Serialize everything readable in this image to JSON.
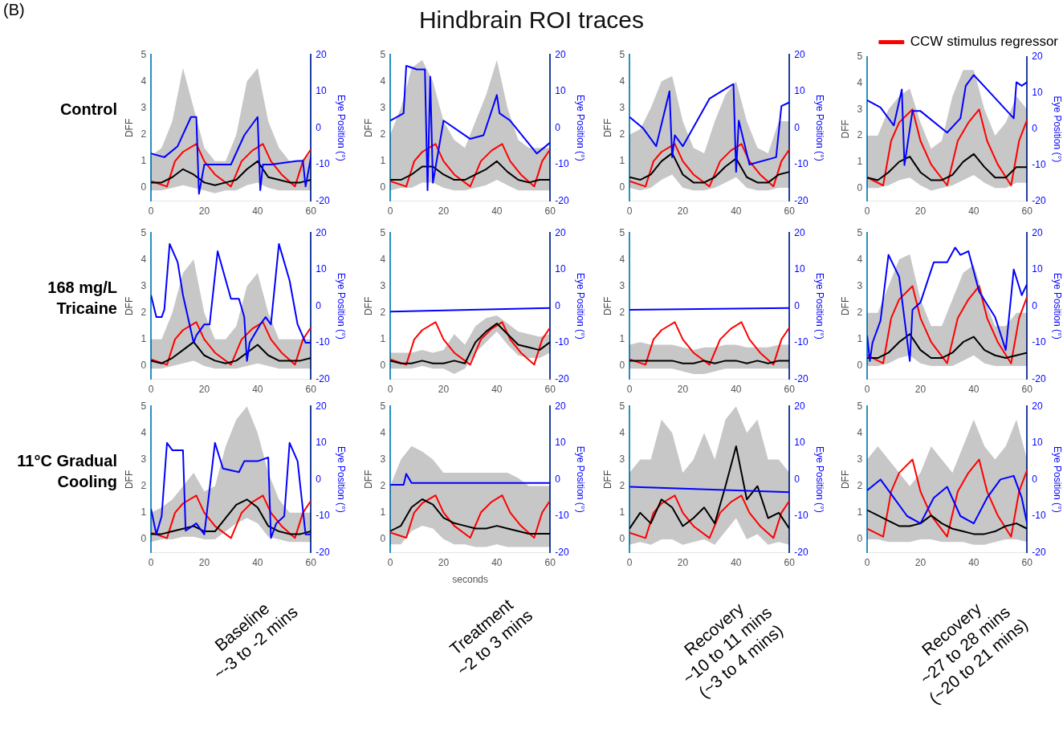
{
  "chart_data": [
    {
      "type": "other",
      "title": "Hindbrain ROI traces",
      "annotations": [
        "(B)",
        "Control",
        "168 mg/L Tricaine",
        "11°C Gradual Cooling",
        "Baseline\n~-3 to -2 mins",
        "Treatment\n~2 to 3 mins",
        "Recovery\n~10 to 11 mins\n(~3 to 4 mins)",
        "Recovery\n~27 to 28 mins\n(~20 to 21 mins)"
      ]
    },
    {
      "type": "line",
      "ylabel": "DFF",
      "y2label": "Eye Position (°)",
      "xlim": [
        0,
        60
      ],
      "xticks": [
        0,
        20,
        40,
        60
      ],
      "ylim": [
        -0.5,
        5
      ],
      "yticks": [
        0,
        1,
        2,
        3,
        4,
        5
      ],
      "y2lim": [
        -20,
        20
      ],
      "y2ticks": [
        -20,
        -10,
        0,
        10,
        20
      ],
      "x": [
        0,
        4,
        8,
        12,
        16,
        20,
        24,
        28,
        32,
        36,
        40,
        44,
        48,
        52,
        56,
        60
      ],
      "series": [
        {
          "color": "#000000",
          "values": [
            0.2,
            0.2,
            0.4,
            0.7,
            0.5,
            0.2,
            0.1,
            0.2,
            0.3,
            0.7,
            1.0,
            0.4,
            0.3,
            0.2,
            0.2,
            0.3
          ],
          "upper": [
            1.2,
            1.5,
            2.5,
            4.5,
            3.0,
            1.5,
            1.0,
            1.0,
            2.0,
            4.0,
            4.5,
            2.5,
            1.5,
            1.0,
            1.0,
            1.3
          ],
          "lower": [
            -0.1,
            -0.1,
            0,
            0.1,
            0,
            -0.1,
            -0.2,
            -0.1,
            -0.1,
            0.1,
            0.2,
            0,
            -0.1,
            -0.1,
            -0.1,
            -0.1
          ]
        },
        {
          "color": "#ff0000",
          "x": [
            0,
            6,
            9,
            12,
            17,
            20,
            24,
            30,
            34,
            38,
            42,
            45,
            49,
            54,
            57,
            60
          ],
          "values": [
            0.25,
            0.05,
            1.0,
            1.35,
            1.65,
            1.0,
            0.5,
            0.05,
            1.0,
            1.4,
            1.65,
            1.0,
            0.5,
            0.05,
            1.0,
            1.45
          ]
        },
        {
          "color": "#0000ff",
          "axis": "y2",
          "x": [
            0,
            5,
            10,
            15,
            17,
            18,
            20,
            30,
            35,
            40,
            41,
            42,
            45,
            55,
            57,
            58,
            60
          ],
          "values": [
            -7,
            -8,
            -5,
            3,
            3,
            -18,
            -10,
            -10,
            -2,
            3,
            -17,
            -10,
            -10,
            -9,
            -9,
            -16,
            -8
          ]
        }
      ]
    },
    {
      "type": "line",
      "ylabel": "DFF",
      "y2label": "Eye Position (°)",
      "xlim": [
        0,
        60
      ],
      "xticks": [
        0,
        20,
        40,
        60
      ],
      "ylim": [
        -0.5,
        5
      ],
      "yticks": [
        0,
        1,
        2,
        3,
        4,
        5
      ],
      "y2lim": [
        -20,
        20
      ],
      "y2ticks": [
        -20,
        -10,
        0,
        10,
        20
      ],
      "x": [
        0,
        4,
        8,
        12,
        16,
        20,
        24,
        28,
        32,
        36,
        40,
        44,
        48,
        52,
        56,
        60
      ],
      "series": [
        {
          "color": "#000000",
          "values": [
            0.3,
            0.3,
            0.5,
            0.8,
            0.8,
            0.5,
            0.3,
            0.3,
            0.5,
            0.7,
            1.0,
            0.6,
            0.3,
            0.2,
            0.3,
            0.3
          ],
          "upper": [
            2,
            3,
            4.5,
            4.8,
            4,
            2.5,
            1.8,
            1.5,
            2.5,
            3.5,
            4.8,
            3,
            1.8,
            1.5,
            1.5,
            1.5
          ],
          "lower": [
            -0.1,
            0,
            0,
            0.2,
            0.2,
            0,
            -0.1,
            -0.1,
            0,
            0.1,
            0.3,
            0.1,
            -0.1,
            -0.1,
            -0.1,
            -0.1
          ]
        },
        {
          "color": "#ff0000",
          "x": [
            0,
            6,
            9,
            12,
            17,
            20,
            24,
            30,
            34,
            38,
            42,
            45,
            49,
            54,
            57,
            60
          ],
          "values": [
            0.25,
            0.05,
            1.0,
            1.35,
            1.65,
            1.0,
            0.5,
            0.05,
            1.0,
            1.4,
            1.65,
            1.0,
            0.5,
            0.05,
            1.0,
            1.45
          ]
        },
        {
          "color": "#0000ff",
          "axis": "y2",
          "x": [
            0,
            5,
            6,
            10,
            13,
            14,
            15,
            16,
            20,
            30,
            35,
            40,
            41,
            45,
            55,
            60
          ],
          "values": [
            2,
            4,
            17,
            16,
            16,
            -17,
            14,
            -15,
            2,
            -3,
            -2,
            9,
            4,
            2,
            -7,
            -4
          ]
        }
      ]
    },
    {
      "type": "line",
      "ylabel": "DFF",
      "y2label": "Eye Position (°)",
      "xlim": [
        0,
        60
      ],
      "xticks": [
        0,
        20,
        40,
        60
      ],
      "ylim": [
        -0.5,
        5
      ],
      "yticks": [
        0,
        1,
        2,
        3,
        4,
        5
      ],
      "y2lim": [
        -20,
        20
      ],
      "y2ticks": [
        -20,
        -10,
        0,
        10,
        20
      ],
      "x": [
        0,
        4,
        8,
        12,
        16,
        20,
        24,
        28,
        32,
        36,
        40,
        44,
        48,
        52,
        56,
        60
      ],
      "series": [
        {
          "color": "#000000",
          "values": [
            0.4,
            0.3,
            0.5,
            1.0,
            1.3,
            0.5,
            0.2,
            0.2,
            0.4,
            0.8,
            1.1,
            0.4,
            0.2,
            0.2,
            0.5,
            0.6
          ],
          "upper": [
            2,
            2.2,
            3,
            4,
            4.2,
            2.5,
            1.5,
            1.3,
            2.5,
            3.5,
            4,
            2.5,
            1.5,
            1.3,
            2.5,
            2.5
          ],
          "lower": [
            0,
            -0.1,
            0,
            0.3,
            0.5,
            0,
            -0.1,
            -0.1,
            0,
            0.2,
            0.4,
            0,
            -0.1,
            -0.1,
            0,
            0
          ]
        },
        {
          "color": "#ff0000",
          "x": [
            0,
            6,
            9,
            12,
            17,
            20,
            24,
            30,
            34,
            38,
            42,
            45,
            49,
            54,
            57,
            60
          ],
          "values": [
            0.25,
            0.05,
            1.0,
            1.35,
            1.65,
            1.0,
            0.5,
            0.05,
            1.0,
            1.4,
            1.65,
            1.0,
            0.5,
            0.05,
            1.0,
            1.45
          ]
        },
        {
          "color": "#0000ff",
          "axis": "y2",
          "x": [
            0,
            5,
            10,
            15,
            16,
            17,
            20,
            30,
            39,
            40,
            41,
            45,
            55,
            57,
            60
          ],
          "values": [
            3,
            0,
            -5,
            10,
            -8,
            -2,
            -5,
            8,
            12,
            -12,
            2,
            -10,
            -8,
            6,
            7
          ]
        }
      ]
    },
    {
      "type": "line",
      "ylabel": "DFF",
      "y2label": "Eye Position (°)",
      "legend": "top right",
      "xlim": [
        0,
        60
      ],
      "xticks": [
        0,
        20,
        40,
        60
      ],
      "ylim": [
        -0.5,
        5
      ],
      "yticks": [
        0,
        1,
        2,
        3,
        4,
        5
      ],
      "y2lim": [
        -20,
        20
      ],
      "y2ticks": [
        -20,
        -10,
        0,
        10,
        20
      ],
      "x": [
        0,
        4,
        8,
        12,
        16,
        20,
        24,
        28,
        32,
        36,
        40,
        44,
        48,
        52,
        56,
        60
      ],
      "series": [
        {
          "color": "#000000",
          "values": [
            0.4,
            0.3,
            0.6,
            1.0,
            1.2,
            0.6,
            0.3,
            0.3,
            0.5,
            1.0,
            1.3,
            0.8,
            0.4,
            0.4,
            0.8,
            0.8
          ],
          "upper": [
            2,
            2,
            3,
            3.5,
            3.8,
            2.5,
            1.5,
            1.8,
            3.5,
            4.5,
            4.5,
            3,
            2,
            2.5,
            3.5,
            3
          ],
          "lower": [
            0,
            0,
            0.1,
            0.3,
            0.4,
            0.1,
            -0.1,
            0,
            0.1,
            0.3,
            0.5,
            0.2,
            0,
            0,
            0.2,
            0.2
          ]
        },
        {
          "name": "CCW stimulus regressor",
          "color": "#ff0000",
          "x": [
            0,
            6,
            9,
            12,
            17,
            20,
            24,
            30,
            34,
            38,
            42,
            45,
            49,
            54,
            57,
            60
          ],
          "values": [
            0.4,
            0.1,
            1.8,
            2.5,
            3.0,
            1.8,
            0.9,
            0.1,
            1.8,
            2.5,
            3.0,
            1.8,
            0.9,
            0.1,
            1.8,
            2.6
          ]
        },
        {
          "color": "#0000ff",
          "axis": "y2",
          "x": [
            0,
            5,
            10,
            13,
            14,
            17,
            20,
            30,
            35,
            37,
            40,
            45,
            55,
            56,
            58,
            60
          ],
          "values": [
            8,
            6,
            1,
            11,
            -10,
            5,
            5,
            -1,
            3,
            12,
            15,
            11,
            3,
            13,
            12,
            13
          ]
        }
      ]
    },
    {
      "type": "line",
      "ylabel": "DFF",
      "y2label": "Eye Position (°)",
      "xlim": [
        0,
        60
      ],
      "xticks": [
        0,
        20,
        40,
        60
      ],
      "ylim": [
        -0.5,
        5
      ],
      "yticks": [
        0,
        1,
        2,
        3,
        4,
        5
      ],
      "y2lim": [
        -20,
        20
      ],
      "y2ticks": [
        -20,
        -10,
        0,
        10,
        20
      ],
      "x": [
        0,
        4,
        8,
        12,
        16,
        20,
        24,
        28,
        32,
        36,
        40,
        44,
        48,
        52,
        56,
        60
      ],
      "series": [
        {
          "color": "#000000",
          "values": [
            0.2,
            0.1,
            0.3,
            0.6,
            0.9,
            0.4,
            0.2,
            0.1,
            0.2,
            0.5,
            0.8,
            0.4,
            0.2,
            0.2,
            0.2,
            0.3
          ],
          "upper": [
            1,
            1,
            2,
            3.5,
            4,
            2,
            1,
            1,
            1.5,
            3,
            3.5,
            2,
            1,
            1,
            1,
            1
          ],
          "lower": [
            -0.1,
            -0.1,
            0,
            0.1,
            0.2,
            0,
            -0.1,
            -0.1,
            -0.1,
            0,
            0.1,
            0,
            -0.1,
            -0.1,
            -0.1,
            -0.1
          ]
        },
        {
          "color": "#ff0000",
          "x": [
            0,
            6,
            9,
            12,
            17,
            20,
            24,
            30,
            34,
            38,
            42,
            45,
            49,
            54,
            57,
            60
          ],
          "values": [
            0.25,
            0.05,
            1.0,
            1.35,
            1.65,
            1.0,
            0.5,
            0.05,
            1.0,
            1.4,
            1.65,
            1.0,
            0.5,
            0.05,
            1.0,
            1.45
          ]
        },
        {
          "color": "#0000ff",
          "axis": "y2",
          "x": [
            0,
            2,
            4,
            5,
            7,
            10,
            12,
            16,
            17,
            20,
            22,
            25,
            30,
            33,
            35,
            36,
            37,
            41,
            43,
            45,
            48,
            52,
            55,
            58,
            60
          ],
          "values": [
            3,
            -3,
            -3,
            -1,
            17,
            12,
            3,
            -10,
            -8,
            -5,
            -5,
            15,
            2,
            2,
            -3,
            -15,
            -10,
            -5,
            -3,
            -5,
            17,
            7,
            -5,
            -10,
            -10
          ]
        }
      ]
    },
    {
      "type": "line",
      "ylabel": "DFF",
      "y2label": "Eye Position (°)",
      "xlim": [
        0,
        60
      ],
      "xticks": [
        0,
        20,
        40,
        60
      ],
      "ylim": [
        -0.5,
        5
      ],
      "yticks": [
        0,
        1,
        2,
        3,
        4,
        5
      ],
      "y2lim": [
        -20,
        20
      ],
      "y2ticks": [
        -20,
        -10,
        0,
        10,
        20
      ],
      "x": [
        0,
        4,
        8,
        12,
        16,
        20,
        24,
        28,
        32,
        36,
        40,
        44,
        48,
        52,
        56,
        60
      ],
      "series": [
        {
          "color": "#000000",
          "values": [
            0.2,
            0.1,
            0.1,
            0.2,
            0.1,
            0.1,
            0.2,
            0.1,
            0.9,
            1.3,
            1.6,
            1.2,
            0.8,
            0.7,
            0.6,
            0.9
          ],
          "upper": [
            0.5,
            0.5,
            0.5,
            0.6,
            0.5,
            0.6,
            1.2,
            0.8,
            1.5,
            1.8,
            1.9,
            1.6,
            1.3,
            1.2,
            1.1,
            1.2
          ],
          "lower": [
            -0.1,
            -0.1,
            -0.1,
            0,
            -0.1,
            -0.1,
            -0.3,
            -0.1,
            0.5,
            0.9,
            1.3,
            0.8,
            0.4,
            0.3,
            0.3,
            0.5
          ]
        },
        {
          "color": "#ff0000",
          "x": [
            0,
            6,
            9,
            12,
            17,
            20,
            24,
            30,
            34,
            38,
            42,
            45,
            49,
            54,
            57,
            60
          ],
          "values": [
            0.25,
            0.05,
            1.0,
            1.35,
            1.65,
            1.0,
            0.5,
            0.05,
            1.0,
            1.4,
            1.65,
            1.0,
            0.5,
            0.05,
            1.0,
            1.45
          ]
        },
        {
          "color": "#0000ff",
          "axis": "y2",
          "x": [
            0,
            60
          ],
          "values": [
            -1.5,
            -0.5
          ]
        }
      ]
    },
    {
      "type": "line",
      "ylabel": "DFF",
      "y2label": "Eye Position (°)",
      "xlim": [
        0,
        60
      ],
      "xticks": [
        0,
        20,
        40,
        60
      ],
      "ylim": [
        -0.5,
        5
      ],
      "yticks": [
        0,
        1,
        2,
        3,
        4,
        5
      ],
      "y2lim": [
        -20,
        20
      ],
      "y2ticks": [
        -20,
        -10,
        0,
        10,
        20
      ],
      "x": [
        0,
        4,
        8,
        12,
        16,
        20,
        24,
        28,
        32,
        36,
        40,
        44,
        48,
        52,
        56,
        60
      ],
      "series": [
        {
          "color": "#000000",
          "values": [
            0.2,
            0.2,
            0.2,
            0.2,
            0.2,
            0.1,
            0.1,
            0.2,
            0.1,
            0.2,
            0.2,
            0.1,
            0.2,
            0.1,
            0.2,
            0.2
          ],
          "upper": [
            0.8,
            0.9,
            0.8,
            0.8,
            0.8,
            0.7,
            0.6,
            0.7,
            0.7,
            0.8,
            0.8,
            0.7,
            0.7,
            0.7,
            0.8,
            0.8
          ],
          "lower": [
            -0.1,
            -0.1,
            -0.1,
            -0.1,
            -0.1,
            -0.2,
            -0.3,
            -0.3,
            -0.2,
            -0.1,
            -0.1,
            -0.1,
            -0.1,
            -0.1,
            -0.1,
            -0.1
          ]
        },
        {
          "color": "#ff0000",
          "x": [
            0,
            6,
            9,
            12,
            17,
            20,
            24,
            30,
            34,
            38,
            42,
            45,
            49,
            54,
            57,
            60
          ],
          "values": [
            0.25,
            0.05,
            1.0,
            1.35,
            1.65,
            1.0,
            0.5,
            0.05,
            1.0,
            1.4,
            1.65,
            1.0,
            0.5,
            0.05,
            1.0,
            1.45
          ]
        },
        {
          "color": "#0000ff",
          "axis": "y2",
          "x": [
            0,
            60
          ],
          "values": [
            -1,
            -0.5
          ]
        }
      ]
    },
    {
      "type": "line",
      "ylabel": "DFF",
      "y2label": "Eye Position (°)",
      "xlim": [
        0,
        60
      ],
      "xticks": [
        0,
        20,
        40,
        60
      ],
      "ylim": [
        -0.5,
        5
      ],
      "yticks": [
        0,
        1,
        2,
        3,
        4,
        5
      ],
      "y2lim": [
        -20,
        20
      ],
      "y2ticks": [
        -20,
        -10,
        0,
        10,
        20
      ],
      "x": [
        0,
        4,
        8,
        12,
        16,
        20,
        24,
        28,
        32,
        36,
        40,
        44,
        48,
        52,
        56,
        60
      ],
      "series": [
        {
          "color": "#000000",
          "values": [
            0.3,
            0.3,
            0.5,
            0.9,
            1.2,
            0.6,
            0.3,
            0.3,
            0.5,
            0.9,
            1.1,
            0.6,
            0.4,
            0.3,
            0.4,
            0.5
          ],
          "upper": [
            2,
            2,
            3,
            4,
            4.2,
            2.5,
            1.5,
            1.5,
            2.5,
            3.5,
            3.8,
            2.5,
            1.5,
            1.5,
            2,
            2
          ],
          "lower": [
            0,
            0,
            0.1,
            0.3,
            0.4,
            0.1,
            0,
            0,
            0,
            0.2,
            0.4,
            0.1,
            0,
            0,
            0,
            0
          ]
        },
        {
          "color": "#ff0000",
          "x": [
            0,
            6,
            9,
            12,
            17,
            20,
            24,
            30,
            34,
            38,
            42,
            45,
            49,
            54,
            57,
            60
          ],
          "values": [
            0.4,
            0.1,
            1.8,
            2.5,
            3.0,
            1.8,
            0.9,
            0.1,
            1.8,
            2.5,
            3.0,
            1.8,
            0.9,
            0.1,
            1.8,
            2.6
          ]
        },
        {
          "color": "#0000ff",
          "axis": "y2",
          "x": [
            0,
            1,
            2,
            5,
            8,
            12,
            16,
            17,
            20,
            25,
            30,
            33,
            35,
            38,
            42,
            48,
            52,
            55,
            58,
            60
          ],
          "values": [
            -8,
            -15,
            -10,
            -4,
            14,
            8,
            -15,
            -1,
            1,
            12,
            12,
            16,
            14,
            15,
            4,
            -3,
            -12,
            10,
            3,
            6
          ]
        }
      ]
    },
    {
      "type": "line",
      "ylabel": "DFF",
      "y2label": "Eye Position (°)",
      "xlim": [
        0,
        60
      ],
      "xticks": [
        0,
        20,
        40,
        60
      ],
      "ylim": [
        -0.5,
        5
      ],
      "yticks": [
        0,
        1,
        2,
        3,
        4,
        5
      ],
      "y2lim": [
        -20,
        20
      ],
      "y2ticks": [
        -20,
        -10,
        0,
        10,
        20
      ],
      "x": [
        0,
        4,
        8,
        12,
        16,
        20,
        24,
        28,
        32,
        36,
        40,
        44,
        48,
        52,
        56,
        60
      ],
      "series": [
        {
          "color": "#000000",
          "values": [
            0.2,
            0.2,
            0.3,
            0.4,
            0.5,
            0.3,
            0.3,
            0.8,
            1.3,
            1.5,
            1.2,
            0.5,
            0.3,
            0.2,
            0.2,
            0.3
          ],
          "upper": [
            1,
            1.2,
            1.5,
            2,
            2.5,
            1.8,
            2,
            3.5,
            4.5,
            5,
            4,
            2.5,
            1.5,
            1,
            1,
            1
          ],
          "lower": [
            -0.1,
            0,
            0,
            0.1,
            0.1,
            0,
            0,
            0.3,
            0.6,
            0.8,
            0.6,
            0.1,
            0,
            -0.1,
            -0.1,
            -0.1
          ]
        },
        {
          "color": "#ff0000",
          "x": [
            0,
            6,
            9,
            12,
            17,
            20,
            24,
            30,
            34,
            38,
            42,
            45,
            49,
            54,
            57,
            60
          ],
          "values": [
            0.25,
            0.05,
            1.0,
            1.35,
            1.65,
            1.0,
            0.5,
            0.05,
            1.0,
            1.4,
            1.65,
            1.0,
            0.5,
            0.05,
            1.0,
            1.45
          ]
        },
        {
          "color": "#0000ff",
          "axis": "y2",
          "x": [
            0,
            2,
            4,
            6,
            8,
            12,
            13,
            17,
            20,
            24,
            27,
            33,
            35,
            40,
            44,
            45,
            47,
            50,
            52,
            55,
            58,
            60
          ],
          "values": [
            -8,
            -15,
            -10,
            10,
            8,
            8,
            -14,
            -12,
            -15,
            10,
            3,
            2,
            5,
            5,
            6,
            -16,
            -12,
            -10,
            10,
            5,
            -15,
            -15
          ]
        }
      ]
    },
    {
      "type": "line",
      "ylabel": "DFF",
      "y2label": "Eye Position (°)",
      "xlabel": "seconds",
      "xlim": [
        0,
        60
      ],
      "xticks": [
        0,
        20,
        40,
        60
      ],
      "ylim": [
        -0.5,
        5
      ],
      "yticks": [
        0,
        1,
        2,
        3,
        4,
        5
      ],
      "y2lim": [
        -20,
        20
      ],
      "y2ticks": [
        -20,
        -10,
        0,
        10,
        20
      ],
      "x": [
        0,
        4,
        8,
        12,
        16,
        20,
        24,
        28,
        32,
        36,
        40,
        44,
        48,
        52,
        56,
        60
      ],
      "series": [
        {
          "color": "#000000",
          "values": [
            0.3,
            0.5,
            1.2,
            1.5,
            1.3,
            0.8,
            0.6,
            0.5,
            0.4,
            0.4,
            0.5,
            0.4,
            0.3,
            0.2,
            0.2,
            0.2
          ],
          "upper": [
            2,
            3,
            3.5,
            3.3,
            3,
            2.5,
            2.5,
            2.5,
            2.5,
            2.5,
            2.5,
            2.5,
            2.3,
            2,
            2,
            2
          ],
          "lower": [
            -0.2,
            -0.2,
            0.3,
            0.5,
            0.4,
            0,
            -0.2,
            -0.2,
            -0.3,
            -0.3,
            -0.2,
            -0.3,
            -0.3,
            -0.3,
            -0.3,
            -0.3
          ]
        },
        {
          "color": "#ff0000",
          "x": [
            0,
            6,
            9,
            12,
            17,
            20,
            24,
            30,
            34,
            38,
            42,
            45,
            49,
            54,
            57,
            60
          ],
          "values": [
            0.25,
            0.05,
            1.0,
            1.35,
            1.65,
            1.0,
            0.5,
            0.05,
            1.0,
            1.4,
            1.65,
            1.0,
            0.5,
            0.05,
            1.0,
            1.45
          ]
        },
        {
          "color": "#0000ff",
          "axis": "y2",
          "x": [
            0,
            5,
            6,
            8,
            60
          ],
          "values": [
            -1.5,
            -1.5,
            1.5,
            -1,
            -1
          ]
        }
      ]
    },
    {
      "type": "line",
      "ylabel": "DFF",
      "y2label": "Eye Position (°)",
      "xlim": [
        0,
        60
      ],
      "xticks": [
        0,
        20,
        40,
        60
      ],
      "ylim": [
        -0.5,
        5
      ],
      "yticks": [
        0,
        1,
        2,
        3,
        4,
        5
      ],
      "y2lim": [
        -20,
        20
      ],
      "y2ticks": [
        -20,
        -10,
        0,
        10,
        20
      ],
      "x": [
        0,
        4,
        8,
        12,
        16,
        20,
        24,
        28,
        32,
        36,
        40,
        44,
        48,
        52,
        56,
        60
      ],
      "series": [
        {
          "color": "#000000",
          "values": [
            0.4,
            1.0,
            0.6,
            1.5,
            1.2,
            0.5,
            0.8,
            1.2,
            0.6,
            2.0,
            3.5,
            1.5,
            2.0,
            0.8,
            1.0,
            0.4
          ],
          "upper": [
            2.5,
            3,
            3,
            4.5,
            4,
            2.5,
            3,
            4,
            3,
            4.5,
            5,
            4,
            4.5,
            3,
            3,
            2.5
          ],
          "lower": [
            -0.2,
            -0.1,
            -0.2,
            0,
            0,
            -0.2,
            -0.1,
            0,
            -0.2,
            0.3,
            0.8,
            0,
            0.2,
            -0.2,
            -0.1,
            -0.2
          ]
        },
        {
          "color": "#ff0000",
          "x": [
            0,
            6,
            9,
            12,
            17,
            20,
            24,
            30,
            34,
            38,
            42,
            45,
            49,
            54,
            57,
            60
          ],
          "values": [
            0.25,
            0.05,
            1.0,
            1.35,
            1.65,
            1.0,
            0.5,
            0.05,
            1.0,
            1.4,
            1.65,
            1.0,
            0.5,
            0.05,
            1.0,
            1.45
          ]
        },
        {
          "color": "#0000ff",
          "axis": "y2",
          "x": [
            0,
            60
          ],
          "values": [
            -2,
            -3.5
          ]
        }
      ]
    },
    {
      "type": "line",
      "ylabel": "DFF",
      "y2label": "Eye Position (°)",
      "xlim": [
        0,
        60
      ],
      "xticks": [
        0,
        20,
        40,
        60
      ],
      "ylim": [
        -0.5,
        5
      ],
      "yticks": [
        0,
        1,
        2,
        3,
        4,
        5
      ],
      "y2lim": [
        -20,
        20
      ],
      "y2ticks": [
        -20,
        -10,
        0,
        10,
        20
      ],
      "x": [
        0,
        4,
        8,
        12,
        16,
        20,
        24,
        28,
        32,
        36,
        40,
        44,
        48,
        52,
        56,
        60
      ],
      "series": [
        {
          "color": "#000000",
          "values": [
            1.1,
            0.9,
            0.7,
            0.5,
            0.5,
            0.6,
            0.9,
            0.6,
            0.4,
            0.3,
            0.2,
            0.2,
            0.3,
            0.5,
            0.6,
            0.4
          ],
          "upper": [
            3,
            3.5,
            3,
            2.5,
            2,
            2.5,
            3.5,
            3,
            2.5,
            3.5,
            4.5,
            3.5,
            3,
            3.5,
            4.5,
            3
          ],
          "lower": [
            0,
            0,
            -0.1,
            -0.1,
            -0.1,
            0,
            0,
            -0.1,
            -0.1,
            -0.1,
            -0.2,
            -0.2,
            -0.1,
            0,
            0,
            -0.1
          ]
        },
        {
          "color": "#ff0000",
          "x": [
            0,
            6,
            9,
            12,
            17,
            20,
            24,
            30,
            34,
            38,
            42,
            45,
            49,
            54,
            57,
            60
          ],
          "values": [
            0.4,
            0.1,
            1.8,
            2.5,
            3.0,
            1.8,
            0.9,
            0.1,
            1.8,
            2.5,
            3.0,
            1.8,
            0.9,
            0.1,
            1.8,
            2.6
          ]
        },
        {
          "color": "#0000ff",
          "axis": "y2",
          "x": [
            0,
            5,
            10,
            15,
            20,
            25,
            30,
            35,
            40,
            45,
            50,
            55,
            58,
            60
          ],
          "values": [
            -3,
            0,
            -5,
            -10,
            -12,
            -5,
            -2,
            -10,
            -12,
            -5,
            0,
            1,
            -5,
            -12
          ]
        }
      ]
    }
  ]
}
